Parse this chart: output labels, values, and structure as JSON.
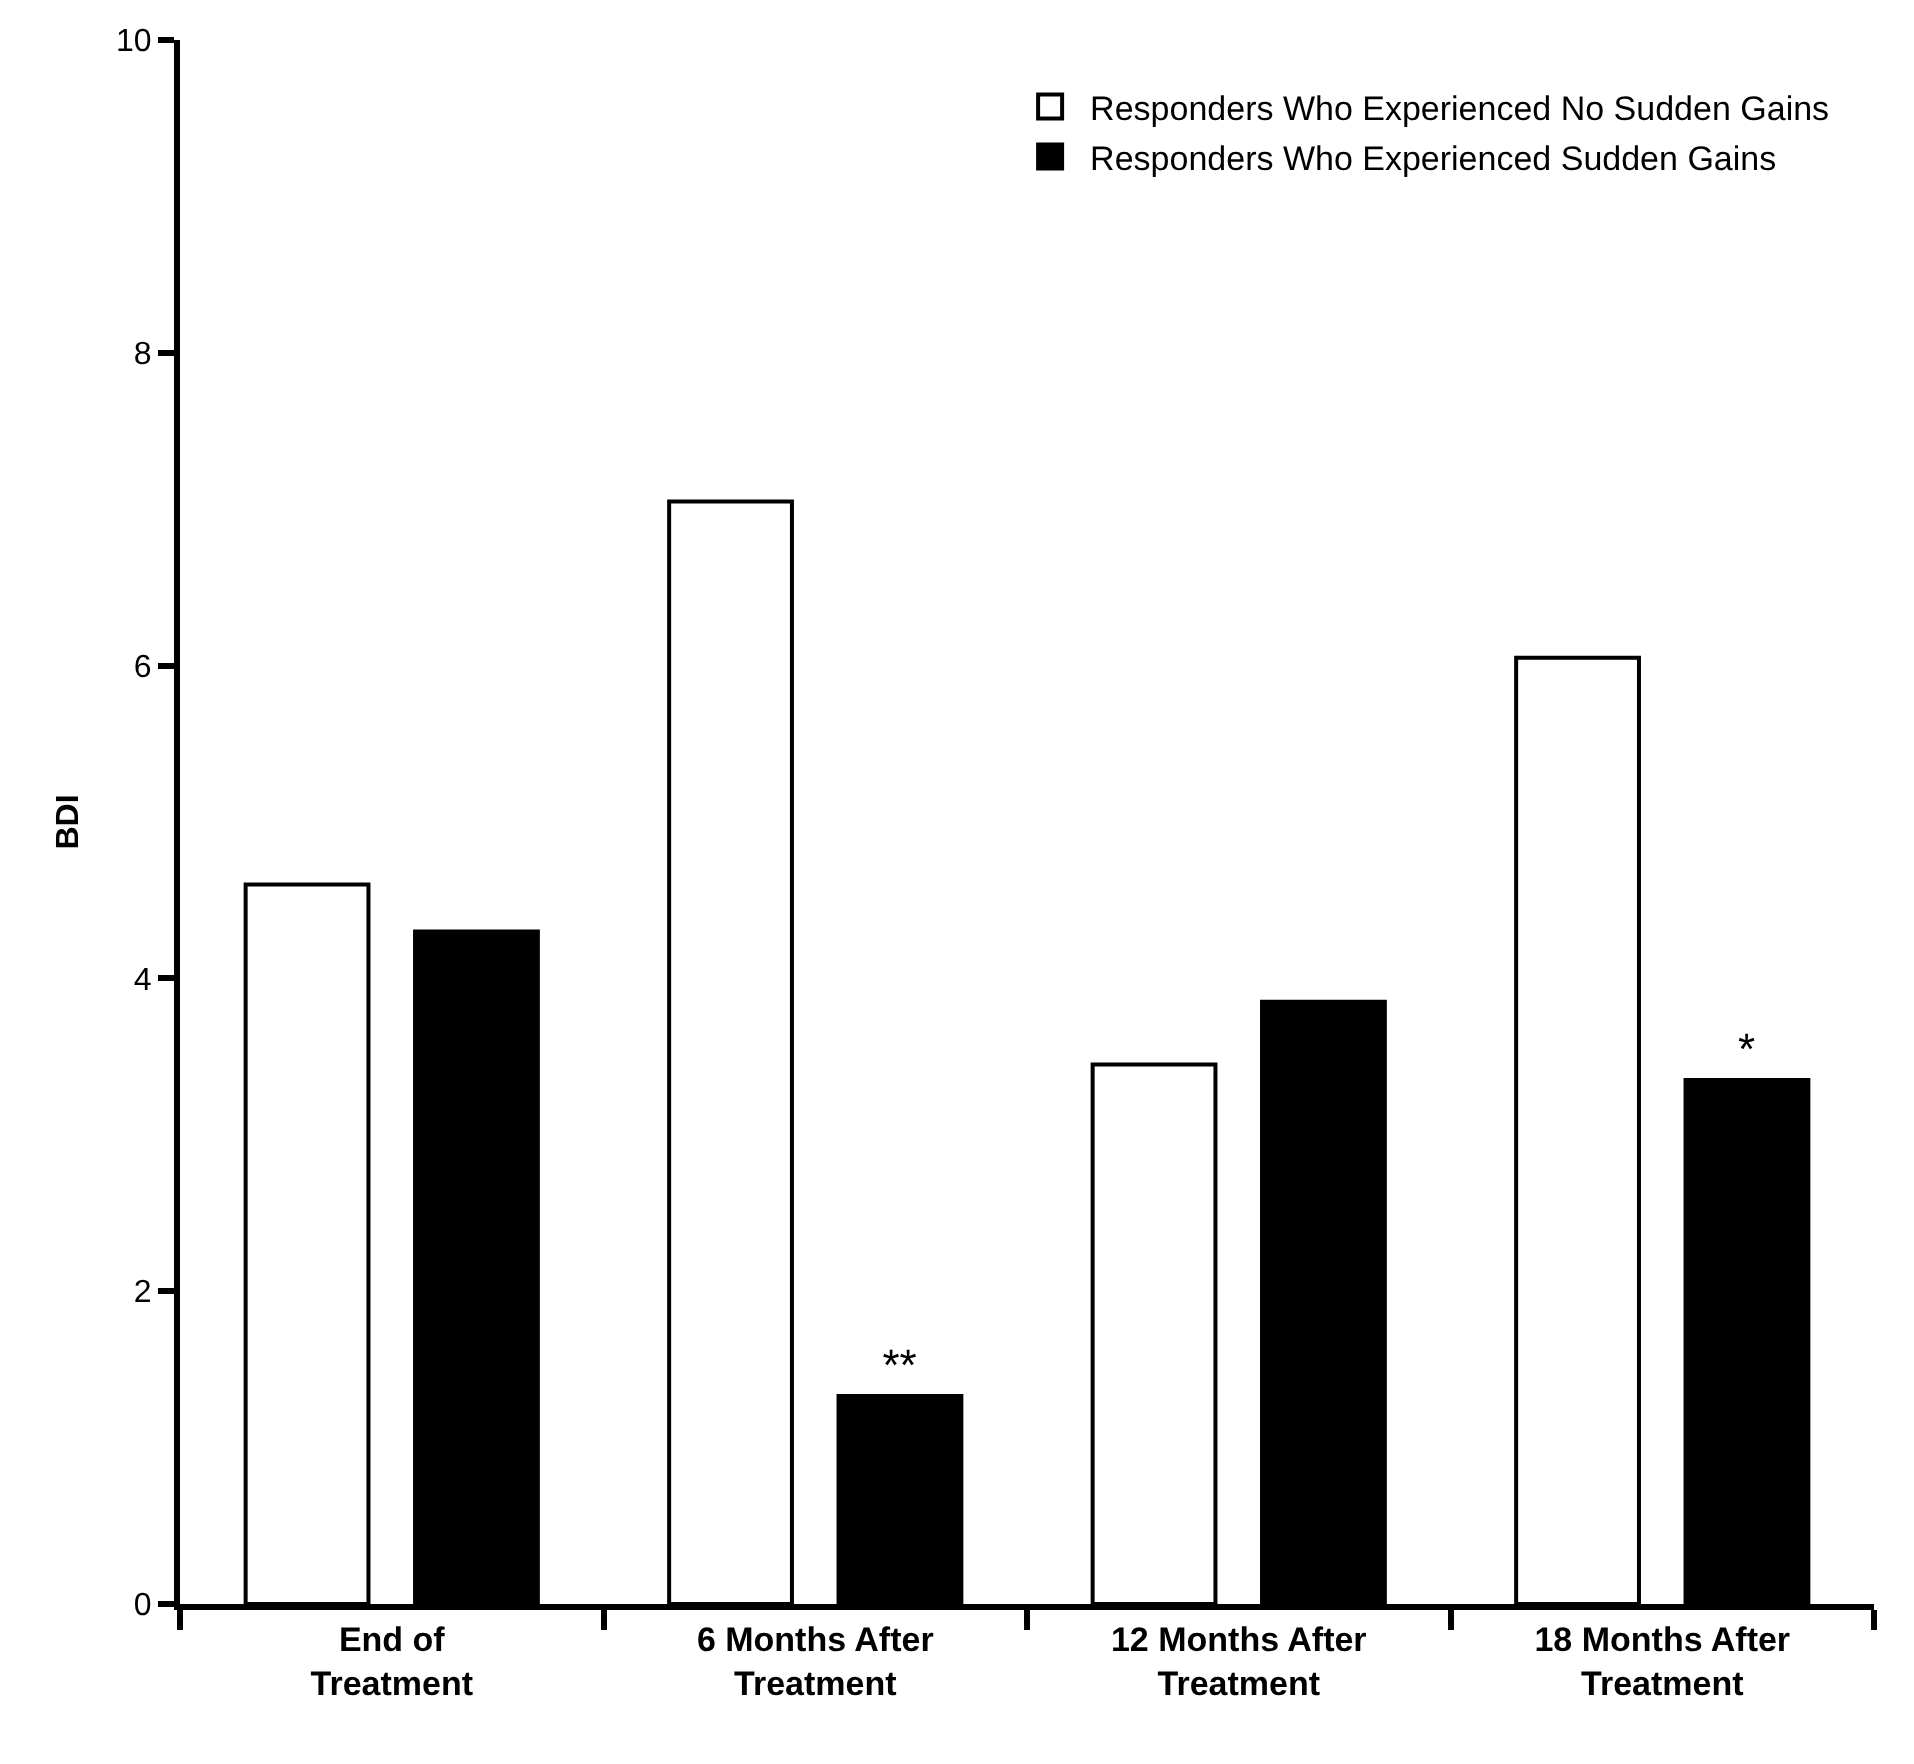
{
  "chart_data": {
    "type": "bar",
    "ylabel": "BDI",
    "categories": [
      "End of Treatment",
      "6 Months After Treatment",
      "12 Months After Treatment",
      "18 Months After Treatment"
    ],
    "series": [
      {
        "name": "Responders Who Experienced No Sudden Gains",
        "color": "#ffffff",
        "values": [
          4.6,
          7.05,
          3.45,
          6.05
        ]
      },
      {
        "name": "Responders Who Experienced Sudden Gains",
        "color": "#000000",
        "values": [
          4.3,
          1.33,
          3.85,
          3.35
        ],
        "value_labels": [
          null,
          "**",
          null,
          "*"
        ]
      }
    ],
    "ylim": [
      0,
      10
    ],
    "yticks": [
      0,
      2,
      4,
      6,
      8,
      10
    ],
    "legend": "top right"
  }
}
